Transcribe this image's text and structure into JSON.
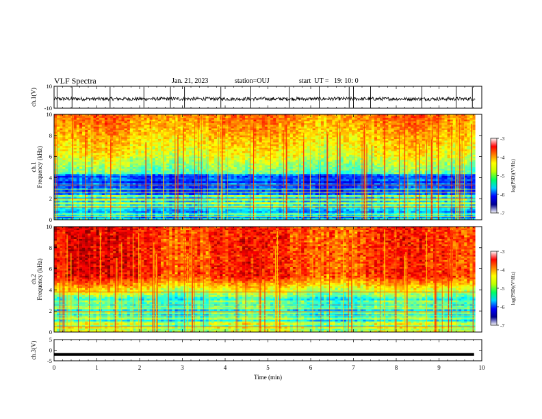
{
  "header": {
    "title": "VLF Spectra",
    "date": "Jan. 21, 2023",
    "station": "station=OUJ",
    "start": "start  UT =   19: 10: 0"
  },
  "chart_data": [
    {
      "type": "line",
      "name": "ch1-waveform",
      "ylabel": "ch.1(V)",
      "ylim": [
        -10,
        10
      ],
      "yticks": [
        "10",
        "-10"
      ],
      "xlim": [
        0,
        10
      ]
    },
    {
      "type": "heatmap",
      "name": "ch1-spectrogram",
      "ylabel_line1": "ch.1",
      "ylabel_line2": "Frequency (kHz)",
      "ylim": [
        0,
        10
      ],
      "yticks": [
        "0",
        "2",
        "4",
        "6",
        "8",
        "10"
      ],
      "xlim": [
        0,
        10
      ],
      "data_end_min": 9.85,
      "colorbar": {
        "label": "log(PSD)(V²/Hz)",
        "range": [
          -7,
          -3
        ],
        "ticks": [
          "-3",
          "-4",
          "-5",
          "-6",
          "-7"
        ]
      }
    },
    {
      "type": "heatmap",
      "name": "ch2-spectrogram",
      "ylabel_line1": "ch.2",
      "ylabel_line2": "Frequency (kHz)",
      "ylim": [
        0,
        10
      ],
      "yticks": [
        "0",
        "2",
        "4",
        "6",
        "8",
        "10"
      ],
      "xlim": [
        0,
        10
      ],
      "data_end_min": 9.85,
      "colorbar": {
        "label": "log(PSD)(V²/Hz)",
        "range": [
          -7,
          -3
        ],
        "ticks": [
          "-3",
          "-4",
          "-5",
          "-6",
          "-7"
        ]
      }
    },
    {
      "type": "line",
      "name": "ch3-waveform",
      "ylabel": "ch.3(V)",
      "ylim": [
        -5,
        5
      ],
      "yticks": [
        "5",
        "0",
        "-5"
      ],
      "y_value": -2,
      "xlim": [
        0,
        10
      ],
      "xlabel": "Time (min)",
      "xticks": [
        "0",
        "1",
        "2",
        "3",
        "4",
        "5",
        "6",
        "7",
        "8",
        "9",
        "10"
      ]
    }
  ],
  "colors": {
    "jet": [
      "#000080",
      "#0000ff",
      "#00ffff",
      "#ffff00",
      "#ff0000",
      "#800000"
    ]
  }
}
